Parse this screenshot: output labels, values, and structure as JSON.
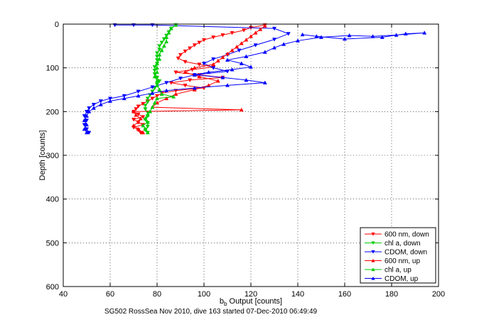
{
  "chart_data": {
    "type": "scatter",
    "title": "",
    "xlabel_main": "b",
    "xlabel_sub": "b",
    "xlabel_rest": " Output [counts]",
    "ylabel": "Depth [counts]",
    "xlim": [
      40,
      200
    ],
    "ylim": [
      0,
      600
    ],
    "y_reversed": true,
    "grid": true,
    "x_ticks": [
      40,
      60,
      80,
      100,
      120,
      140,
      160,
      180,
      200
    ],
    "y_ticks": [
      0,
      100,
      200,
      300,
      400,
      500,
      600
    ],
    "x_tick_labels": [
      "40",
      "60",
      "80",
      "100",
      "120",
      "140",
      "160",
      "180",
      "200"
    ],
    "y_tick_labels": [
      "0",
      "100",
      "200",
      "300",
      "400",
      "500",
      "600"
    ],
    "legend_position": "bottom-right",
    "caption": "SG502 RossSea Nov 2010, dive 163 started 07-Dec-2010 06:49:49",
    "series": [
      {
        "name": "600 nm, down",
        "color": "#ff0000",
        "marker": "down-triangle",
        "points": [
          [
            126,
            2
          ],
          [
            120,
            8
          ],
          [
            117,
            14
          ],
          [
            112,
            20
          ],
          [
            108,
            25
          ],
          [
            104,
            30
          ],
          [
            100,
            36
          ],
          [
            98,
            42
          ],
          [
            96,
            48
          ],
          [
            94,
            55
          ],
          [
            92,
            62
          ],
          [
            90,
            70
          ],
          [
            89,
            78
          ],
          [
            92,
            86
          ],
          [
            98,
            92
          ],
          [
            104,
            98
          ],
          [
            95,
            104
          ],
          [
            88,
            110
          ],
          [
            98,
            116
          ],
          [
            108,
            122
          ],
          [
            94,
            128
          ],
          [
            86,
            134
          ],
          [
            92,
            140
          ],
          [
            100,
            146
          ],
          [
            88,
            152
          ],
          [
            82,
            158
          ],
          [
            80,
            164
          ],
          [
            78,
            170
          ],
          [
            76,
            176
          ],
          [
            74,
            182
          ],
          [
            72,
            188
          ],
          [
            71,
            194
          ],
          [
            70,
            200
          ],
          [
            72,
            206
          ],
          [
            74,
            212
          ],
          [
            70,
            218
          ],
          [
            72,
            224
          ],
          [
            74,
            230
          ],
          [
            70,
            236
          ],
          [
            72,
            242
          ],
          [
            73,
            248
          ]
        ]
      },
      {
        "name": "chl a, down",
        "color": "#00cc00",
        "marker": "down-triangle",
        "points": [
          [
            88,
            2
          ],
          [
            86,
            10
          ],
          [
            85,
            18
          ],
          [
            84,
            26
          ],
          [
            83,
            34
          ],
          [
            82,
            42
          ],
          [
            81,
            50
          ],
          [
            81,
            58
          ],
          [
            80,
            66
          ],
          [
            80,
            74
          ],
          [
            80,
            82
          ],
          [
            80,
            90
          ],
          [
            79,
            98
          ],
          [
            79,
            106
          ],
          [
            79,
            114
          ],
          [
            80,
            122
          ],
          [
            81,
            130
          ],
          [
            80,
            138
          ],
          [
            79,
            146
          ],
          [
            78,
            154
          ],
          [
            77,
            162
          ],
          [
            76,
            170
          ],
          [
            76,
            178
          ],
          [
            75,
            186
          ],
          [
            75,
            194
          ],
          [
            76,
            202
          ],
          [
            76,
            210
          ],
          [
            75,
            218
          ],
          [
            76,
            226
          ],
          [
            76,
            234
          ],
          [
            75,
            242
          ],
          [
            76,
            248
          ]
        ]
      },
      {
        "name": "CDOM, down",
        "color": "#0000ff",
        "marker": "down-triangle",
        "points": [
          [
            62,
            2
          ],
          [
            70,
            2
          ],
          [
            78,
            2
          ],
          [
            130,
            10
          ],
          [
            136,
            22
          ],
          [
            130,
            35
          ],
          [
            122,
            48
          ],
          [
            115,
            60
          ],
          [
            110,
            70
          ],
          [
            104,
            80
          ],
          [
            100,
            90
          ],
          [
            104,
            100
          ],
          [
            110,
            108
          ],
          [
            96,
            116
          ],
          [
            90,
            124
          ],
          [
            84,
            134
          ],
          [
            78,
            144
          ],
          [
            72,
            154
          ],
          [
            66,
            164
          ],
          [
            60,
            170
          ],
          [
            56,
            176
          ],
          [
            53,
            184
          ],
          [
            51,
            192
          ],
          [
            50,
            200
          ],
          [
            49,
            210
          ],
          [
            50,
            220
          ],
          [
            49,
            230
          ],
          [
            50,
            240
          ],
          [
            51,
            248
          ]
        ]
      },
      {
        "name": "600 nm, up",
        "color": "#ff0000",
        "marker": "up-triangle",
        "points": [
          [
            74,
            248
          ],
          [
            72,
            240
          ],
          [
            70,
            232
          ],
          [
            72,
            224
          ],
          [
            73,
            216
          ],
          [
            71,
            208
          ],
          [
            70,
            200
          ],
          [
            116,
            196
          ],
          [
            78,
            190
          ],
          [
            80,
            180
          ],
          [
            84,
            170
          ],
          [
            88,
            160
          ],
          [
            96,
            150
          ],
          [
            102,
            140
          ],
          [
            106,
            130
          ],
          [
            98,
            120
          ],
          [
            92,
            110
          ],
          [
            96,
            100
          ],
          [
            104,
            92
          ],
          [
            106,
            84
          ],
          [
            108,
            76
          ],
          [
            110,
            68
          ],
          [
            112,
            60
          ],
          [
            114,
            52
          ],
          [
            116,
            44
          ],
          [
            118,
            36
          ],
          [
            120,
            28
          ],
          [
            122,
            20
          ],
          [
            124,
            12
          ],
          [
            126,
            4
          ]
        ]
      },
      {
        "name": "chl a, up",
        "color": "#00cc00",
        "marker": "up-triangle",
        "points": [
          [
            76,
            248
          ],
          [
            75,
            240
          ],
          [
            74,
            232
          ],
          [
            76,
            224
          ],
          [
            75,
            216
          ],
          [
            76,
            208
          ],
          [
            77,
            200
          ],
          [
            78,
            190
          ],
          [
            79,
            180
          ],
          [
            80,
            170
          ],
          [
            87,
            166
          ],
          [
            82,
            160
          ],
          [
            81,
            150
          ],
          [
            80,
            140
          ],
          [
            80,
            130
          ],
          [
            79,
            120
          ],
          [
            80,
            110
          ],
          [
            80,
            100
          ],
          [
            80,
            90
          ],
          [
            81,
            80
          ],
          [
            81,
            70
          ],
          [
            82,
            60
          ],
          [
            83,
            50
          ],
          [
            84,
            40
          ],
          [
            84,
            30
          ],
          [
            85,
            20
          ],
          [
            86,
            10
          ],
          [
            88,
            2
          ]
        ]
      },
      {
        "name": "CDOM, up",
        "color": "#0000ff",
        "marker": "up-triangle",
        "points": [
          [
            50,
            248
          ],
          [
            49,
            240
          ],
          [
            50,
            230
          ],
          [
            49,
            220
          ],
          [
            50,
            210
          ],
          [
            51,
            200
          ],
          [
            53,
            192
          ],
          [
            56,
            184
          ],
          [
            60,
            176
          ],
          [
            66,
            170
          ],
          [
            72,
            164
          ],
          [
            78,
            158
          ],
          [
            84,
            152
          ],
          [
            96,
            146
          ],
          [
            110,
            140
          ],
          [
            126,
            134
          ],
          [
            118,
            128
          ],
          [
            108,
            122
          ],
          [
            96,
            116
          ],
          [
            102,
            110
          ],
          [
            112,
            104
          ],
          [
            120,
            98
          ],
          [
            116,
            90
          ],
          [
            110,
            82
          ],
          [
            118,
            74
          ],
          [
            126,
            64
          ],
          [
            130,
            54
          ],
          [
            134,
            46
          ],
          [
            140,
            38
          ],
          [
            150,
            30
          ],
          [
            162,
            26
          ],
          [
            172,
            28
          ],
          [
            182,
            25
          ],
          [
            194,
            20
          ],
          [
            186,
            22
          ],
          [
            176,
            30
          ],
          [
            160,
            34
          ],
          [
            148,
            28
          ],
          [
            142,
            24
          ]
        ]
      }
    ]
  }
}
